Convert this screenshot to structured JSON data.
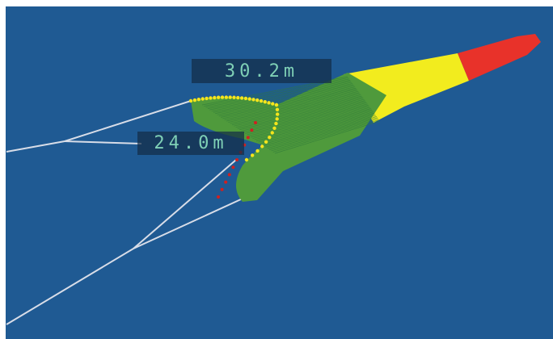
{
  "overlays": [
    {
      "label": "30.2m"
    },
    {
      "label": "24.0m"
    }
  ]
}
